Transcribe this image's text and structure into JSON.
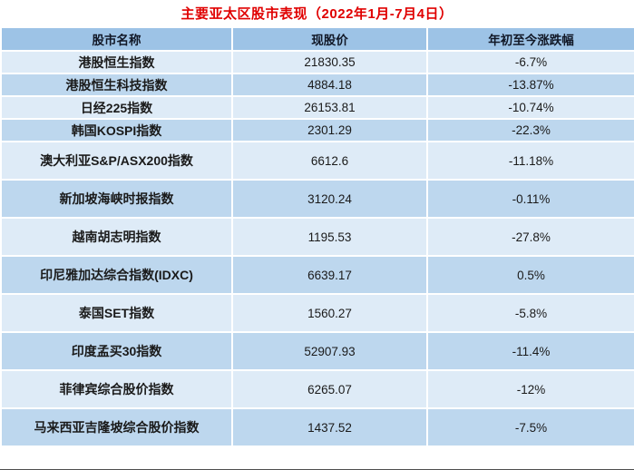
{
  "title": "主要亚太区股市表现（2022年1月-7月4日）",
  "chart_data": {
    "type": "table",
    "title": "主要亚太区股市表现（2022年1月-7月4日）",
    "columns": [
      "股市名称",
      "现股价",
      "年初至今涨跌幅"
    ],
    "rows": [
      {
        "name": "港股恒生指数",
        "price": "21830.35",
        "change": "-6.7%"
      },
      {
        "name": "港股恒生科技指数",
        "price": "4884.18",
        "change": "-13.87%"
      },
      {
        "name": "日经225指数",
        "price": "26153.81",
        "change": "-10.74%"
      },
      {
        "name": "韩国KOSPI指数",
        "price": "2301.29",
        "change": "-22.3%"
      },
      {
        "name": "澳大利亚S&P/ASX200指数",
        "price": "6612.6",
        "change": "-11.18%"
      },
      {
        "name": "新加坡海峡时报指数",
        "price": "3120.24",
        "change": "-0.11%"
      },
      {
        "name": "越南胡志明指数",
        "price": "1195.53",
        "change": "-27.8%"
      },
      {
        "name": "印尼雅加达综合指数(IDXC)",
        "price": "6639.17",
        "change": "0.5%"
      },
      {
        "name": "泰国SET指数",
        "price": "1560.27",
        "change": "-5.8%"
      },
      {
        "name": "印度孟买30指数",
        "price": "52907.93",
        "change": "-11.4%"
      },
      {
        "name": "菲律宾综合股价指数",
        "price": "6265.07",
        "change": "-12%"
      },
      {
        "name": "马来西亚吉隆坡综合股价指数",
        "price": "1437.52",
        "change": "-7.5%"
      }
    ]
  },
  "colors": {
    "header_bg": "#9dc3e6",
    "row_odd_bg": "#deebf7",
    "row_even_bg": "#bdd7ee",
    "title_color": "#e00000"
  }
}
